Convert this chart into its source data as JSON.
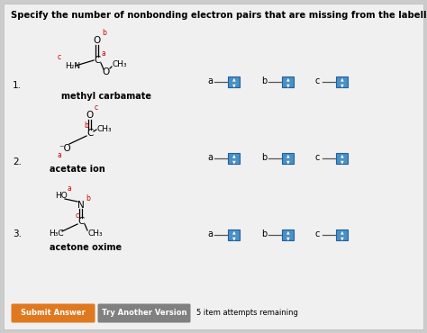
{
  "title": "Specify the number of nonbonding electron pairs that are missing from the labelled atoms.",
  "bg_color": "#e8e8e8",
  "molecules": [
    {
      "number": "1.",
      "name": "methyl carbamate"
    },
    {
      "number": "2.",
      "name": "acetate ion"
    },
    {
      "number": "3.",
      "name": "acetone oxime"
    }
  ],
  "submit_btn": {
    "text": "Submit Answer",
    "color": "#e07820"
  },
  "try_btn": {
    "text": "Try Another Version",
    "color": "#808080"
  },
  "attempts_text": "5 item attempts remaining",
  "label_color": "#cc0000",
  "box_color": "#4a90c4",
  "box_edge": "#2060a0"
}
